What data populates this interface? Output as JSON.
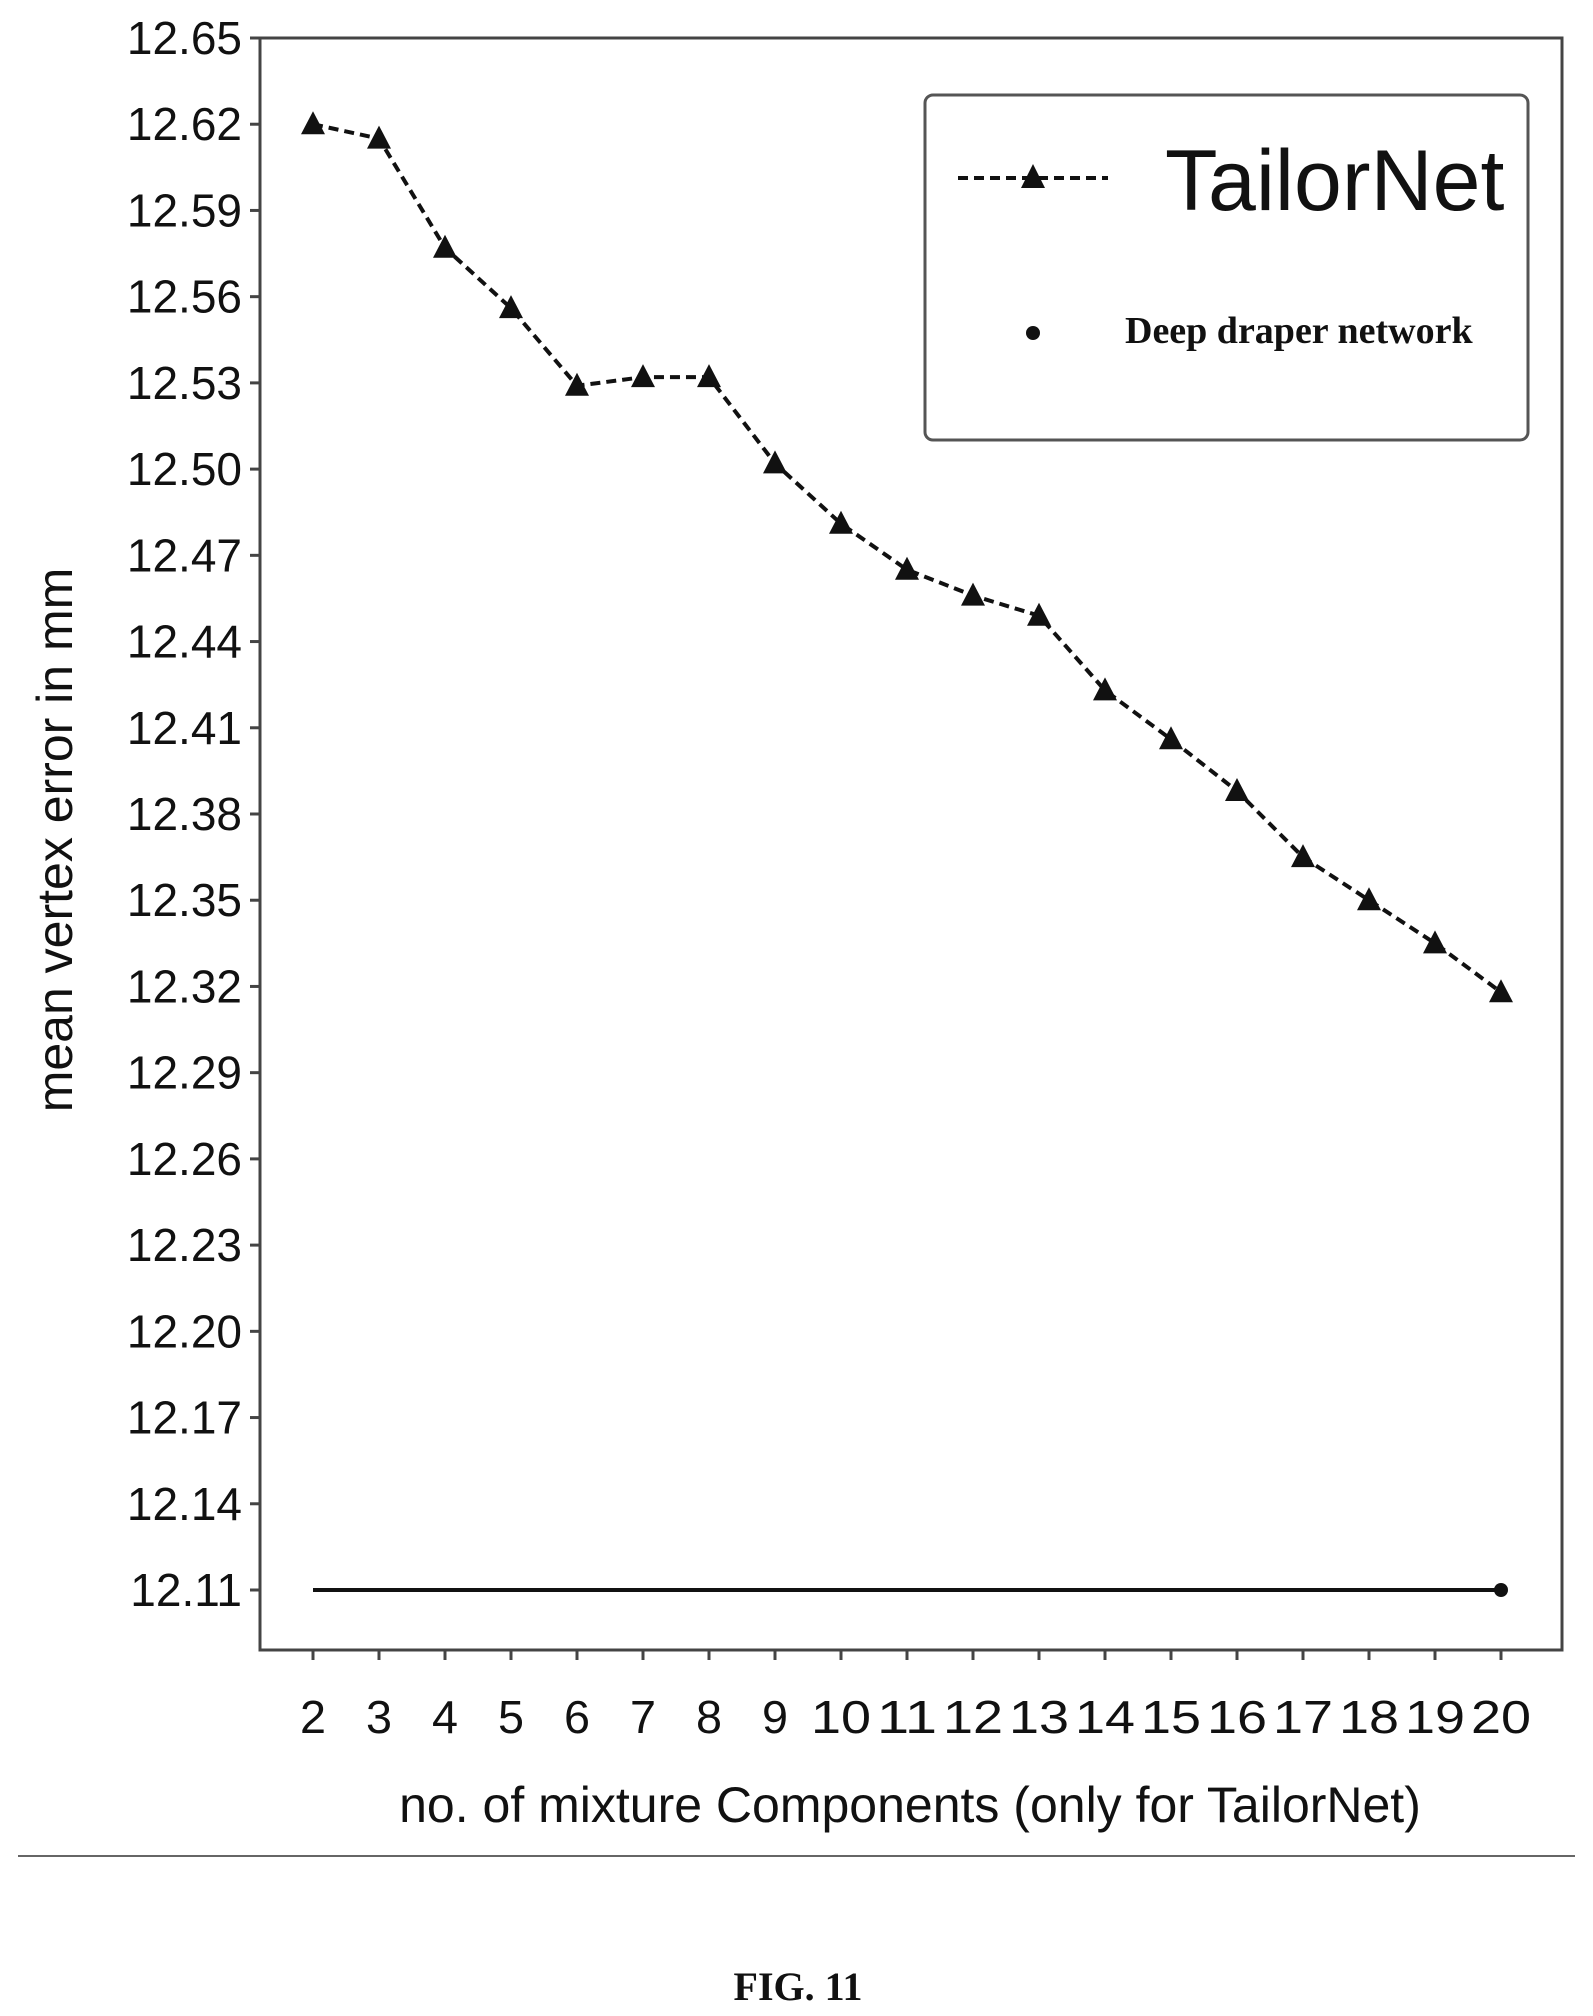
{
  "chart_data": {
    "type": "line",
    "title": "",
    "xlabel": "no. of mixture Components (only for TailorNet)",
    "ylabel": "mean vertex error in mm",
    "categories": [
      "2",
      "3",
      "4",
      "5",
      "6",
      "7",
      "8",
      "9",
      "10",
      "11",
      "12",
      "13",
      "14",
      "15",
      "16",
      "17",
      "18",
      "19",
      "20"
    ],
    "yticks": [
      "12.11",
      "12.14",
      "12.17",
      "12.20",
      "12.23",
      "12.26",
      "12.29",
      "12.32",
      "12.35",
      "12.38",
      "12.41",
      "12.44",
      "12.47",
      "12.50",
      "12.53",
      "12.56",
      "12.59",
      "12.62",
      "12.65"
    ],
    "ylim": [
      12.11,
      12.65
    ],
    "grid": false,
    "legend_position": "top-right",
    "series": [
      {
        "name": "TailorNet",
        "style": "dashed line with triangle markers",
        "values": [
          12.62,
          12.615,
          12.577,
          12.556,
          12.529,
          12.532,
          12.532,
          12.502,
          12.481,
          12.465,
          12.456,
          12.449,
          12.423,
          12.406,
          12.388,
          12.365,
          12.35,
          12.335,
          12.318
        ]
      },
      {
        "name": "Deep draper network",
        "style": "solid line with circle marker",
        "values": [
          12.11,
          12.11,
          12.11,
          12.11,
          12.11,
          12.11,
          12.11,
          12.11,
          12.11,
          12.11,
          12.11,
          12.11,
          12.11,
          12.11,
          12.11,
          12.11,
          12.11,
          12.11,
          12.11
        ]
      }
    ]
  },
  "figure": {
    "caption": "FIG. 11"
  },
  "colors": {
    "line": "#111111",
    "frame": "#444444",
    "background": "#ffffff"
  }
}
